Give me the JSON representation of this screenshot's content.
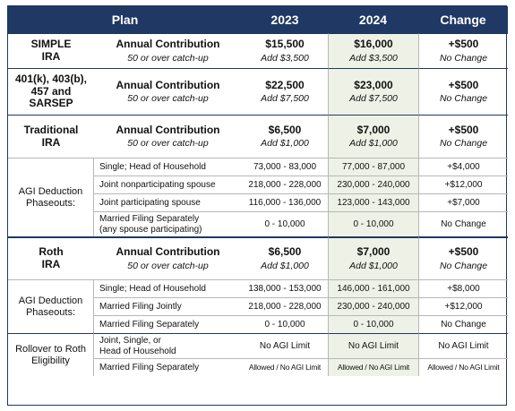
{
  "header": {
    "plan": "Plan",
    "y2023": "2023",
    "y2024": "2024",
    "change": "Change"
  },
  "simple": {
    "plan": "SIMPLE\nIRA",
    "label": "Annual Contribution",
    "sub": "50 or over catch-up",
    "v2023": "$15,500",
    "v2023_sub": "Add $3,500",
    "v2024": "$16,000",
    "v2024_sub": "Add $3,500",
    "change": "+$500",
    "change_sub": "No Change"
  },
  "k401": {
    "plan": "401(k), 403(b),\n457 and\nSARSEP",
    "label": "Annual Contribution",
    "sub": "50 or over catch-up",
    "v2023": "$22,500",
    "v2023_sub": "Add $7,500",
    "v2024": "$23,000",
    "v2024_sub": "Add $7,500",
    "change": "+$500",
    "change_sub": "No Change"
  },
  "trad": {
    "plan": "Traditional\nIRA",
    "label": "Annual Contribution",
    "sub": "50 or over catch-up",
    "v2023": "$6,500",
    "v2023_sub": "Add $1,000",
    "v2024": "$7,000",
    "v2024_sub": "Add $1,000",
    "change": "+$500",
    "change_sub": "No Change",
    "agi_label": "AGI Deduction\nPhaseouts:",
    "rows": [
      {
        "desc": "Single; Head of Household",
        "v2023": "73,000 - 83,000",
        "v2024": "77,000 - 87,000",
        "change": "+$4,000"
      },
      {
        "desc": "Joint nonparticipating spouse",
        "v2023": "218,000 - 228,000",
        "v2024": "230,000 - 240,000",
        "change": "+$12,000"
      },
      {
        "desc": "Joint participating spouse",
        "v2023": "116,000 - 136,000",
        "v2024": "123,000 - 143,000",
        "change": "+$7,000"
      },
      {
        "desc": "Married Filing Separately\n(any spouse participating)",
        "v2023": "0 - 10,000",
        "v2024": "0 - 10,000",
        "change": "No Change"
      }
    ]
  },
  "roth": {
    "plan": "Roth\nIRA",
    "label": "Annual Contribution",
    "sub": "50 or over catch-up",
    "v2023": "$6,500",
    "v2023_sub": "Add $1,000",
    "v2024": "$7,000",
    "v2024_sub": "Add $1,000",
    "change": "+$500",
    "change_sub": "No Change",
    "agi_label": "AGI Deduction\nPhaseouts:",
    "rows": [
      {
        "desc": "Single; Head of Household",
        "v2023": "138,000 - 153,000",
        "v2024": "146,000 - 161,000",
        "change": "+$8,000"
      },
      {
        "desc": "Married Filing Jointly",
        "v2023": "218,000 - 228,000",
        "v2024": "230,000 - 240,000",
        "change": "+$12,000"
      },
      {
        "desc": "Married Filing Separately",
        "v2023": "0 - 10,000",
        "v2024": "0 - 10,000",
        "change": "No Change"
      }
    ],
    "rollover_label": "Rollover to Roth\nEligibility",
    "rollover_rows": [
      {
        "desc": "Joint, Single, or\nHead of Household",
        "v2023": "No AGI Limit",
        "v2024": "No AGI Limit",
        "change": "No AGI Limit"
      },
      {
        "desc": "Married Filing Separately",
        "v2023": "Allowed / No AGI Limit",
        "v2024": "Allowed / No AGI Limit",
        "change": "Allowed / No AGI Limit"
      }
    ]
  }
}
